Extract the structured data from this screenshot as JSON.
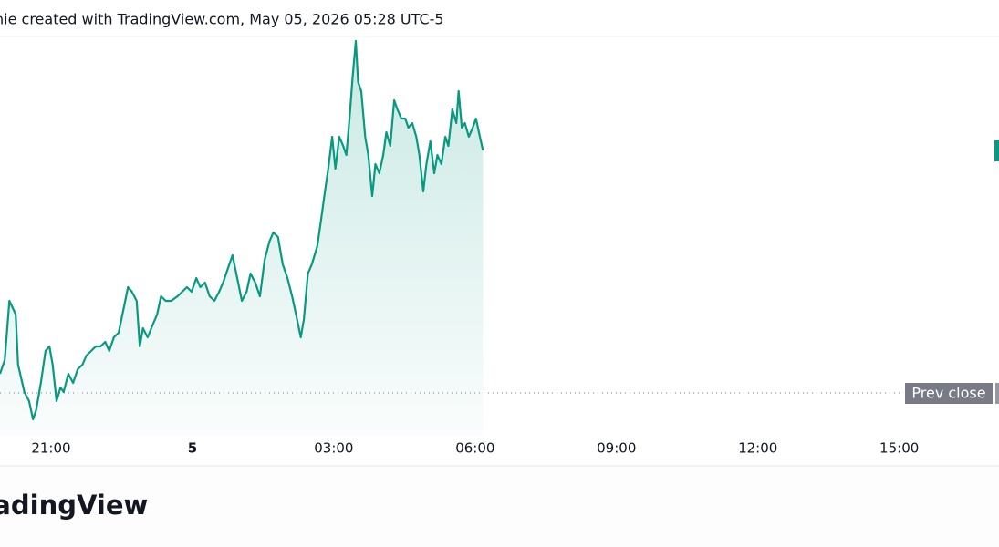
{
  "chart_data": {
    "type": "area",
    "title": "nie created with TradingView.com, May 05, 2026 05:28 UTC-5",
    "watermark": "radingView",
    "color": "#089981",
    "x": [
      -245,
      -239,
      -233,
      -225,
      -222,
      -214,
      -208,
      -203,
      -199,
      -193,
      -187,
      -182,
      -178,
      -173,
      -168,
      -164,
      -158,
      -152,
      -146,
      -140,
      -135,
      -129,
      -123,
      -117,
      -111,
      -106,
      -100,
      -94,
      -88,
      -82,
      -77,
      -71,
      -67,
      -63,
      -57,
      -50,
      -45,
      -40,
      -34,
      -27,
      -19,
      -13,
      -7,
      -1,
      5,
      10,
      16,
      22,
      28,
      34,
      39,
      45,
      51,
      57,
      63,
      69,
      74,
      80,
      86,
      92,
      98,
      103,
      109,
      115,
      121,
      127,
      132,
      138,
      142,
      147,
      152,
      159,
      164,
      168,
      173,
      178,
      182,
      187,
      192,
      196,
      200,
      204,
      208,
      211,
      215,
      220,
      224,
      229,
      233,
      238,
      243,
      247,
      252,
      257,
      261,
      266,
      271,
      275,
      280,
      285,
      289,
      294,
      298,
      303,
      308,
      312,
      317,
      322,
      326,
      331,
      336,
      339,
      343,
      347,
      352,
      357,
      361,
      366,
      370
    ],
    "values": [
      68,
      83,
      148,
      133,
      78,
      48,
      38,
      18,
      28,
      58,
      93,
      98,
      78,
      38,
      53,
      48,
      68,
      58,
      73,
      78,
      88,
      93,
      98,
      98,
      103,
      93,
      108,
      113,
      138,
      163,
      158,
      148,
      98,
      118,
      108,
      123,
      133,
      153,
      148,
      148,
      153,
      158,
      163,
      158,
      173,
      163,
      168,
      153,
      148,
      158,
      168,
      183,
      198,
      173,
      148,
      158,
      178,
      168,
      153,
      193,
      213,
      223,
      218,
      188,
      173,
      153,
      133,
      108,
      128,
      178,
      188,
      208,
      238,
      263,
      293,
      328,
      293,
      328,
      318,
      308,
      348,
      393,
      433,
      388,
      378,
      328,
      308,
      263,
      298,
      288,
      308,
      333,
      318,
      368,
      358,
      348,
      348,
      338,
      343,
      328,
      308,
      268,
      298,
      323,
      288,
      308,
      298,
      328,
      318,
      358,
      343,
      378,
      338,
      343,
      328,
      338,
      348,
      328,
      313
    ],
    "xlim": [
      -245,
      1027
    ],
    "xticks": [
      {
        "value": -180,
        "label": "21:00"
      },
      {
        "value": 0,
        "label": "5"
      },
      {
        "value": 180,
        "label": "03:00"
      },
      {
        "value": 360,
        "label": "06:00"
      },
      {
        "value": 540,
        "label": "09:00"
      },
      {
        "value": 720,
        "label": "12:00"
      },
      {
        "value": 900,
        "label": "15:00"
      }
    ],
    "ylim": [
      0,
      438
    ],
    "reference_line": {
      "value": 47,
      "label": "Prev close"
    }
  }
}
